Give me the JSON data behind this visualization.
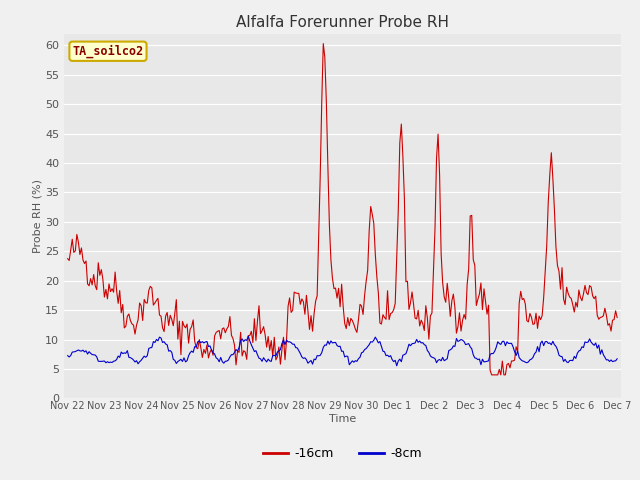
{
  "title": "Alfalfa Forerunner Probe RH",
  "xlabel": "Time",
  "ylabel": "Probe RH (%)",
  "ylim": [
    0,
    62
  ],
  "yticks": [
    0,
    5,
    10,
    15,
    20,
    25,
    30,
    35,
    40,
    45,
    50,
    55,
    60
  ],
  "plot_bg_color": "#e8e8e8",
  "fig_bg_color": "#f0f0f0",
  "grid_color": "#ffffff",
  "legend_label": "TA_soilco2",
  "legend_box_facecolor": "#ffffcc",
  "legend_box_edgecolor": "#ccaa00",
  "legend_label_color": "#880000",
  "line1_color": "#cc0000",
  "line2_color": "#0000cc",
  "line1_label": "-16cm",
  "line2_label": "-8cm",
  "x_tick_labels": [
    "Nov 22",
    "Nov 23",
    "Nov 24",
    "Nov 25",
    "Nov 26",
    "Nov 27",
    "Nov 28",
    "Nov 29",
    "Nov 30",
    "Dec 1",
    "Dec 2",
    "Dec 3",
    "Dec 4",
    "Dec 5",
    "Dec 6",
    "Dec 7"
  ],
  "n_points": 360,
  "n_days": 15
}
